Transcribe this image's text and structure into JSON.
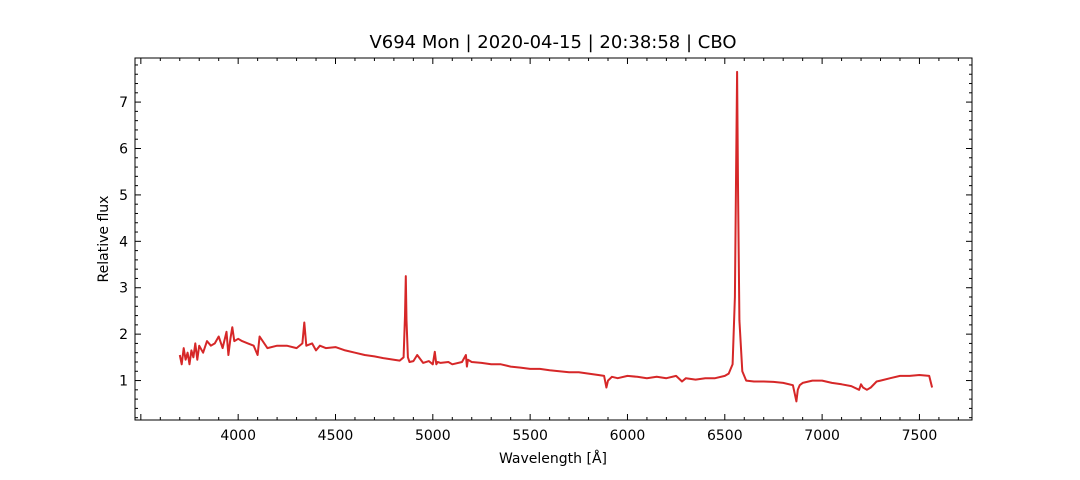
{
  "chart_data": {
    "type": "line",
    "title": "V694 Mon | 2020-04-15 | 20:38:58 | CBO",
    "xlabel": "Wavelength [Å]",
    "ylabel": "Relative flux",
    "xlim": [
      3470,
      7770
    ],
    "ylim": [
      0.15,
      7.95
    ],
    "xticks": [
      4000,
      4500,
      5000,
      5500,
      6000,
      6500,
      7000,
      7500
    ],
    "yticks": [
      1,
      2,
      3,
      4,
      5,
      6,
      7
    ],
    "grid": false,
    "ticks_direction": "in",
    "series": [
      {
        "color": "#d62728",
        "x": [
          3700,
          3710,
          3720,
          3730,
          3740,
          3750,
          3760,
          3770,
          3780,
          3790,
          3800,
          3820,
          3840,
          3860,
          3880,
          3900,
          3920,
          3940,
          3950,
          3960,
          3970,
          3980,
          4000,
          4020,
          4050,
          4080,
          4100,
          4110,
          4150,
          4200,
          4250,
          4300,
          4330,
          4340,
          4350,
          4380,
          4400,
          4420,
          4450,
          4500,
          4550,
          4600,
          4650,
          4700,
          4750,
          4800,
          4830,
          4850,
          4857,
          4861,
          4865,
          4872,
          4880,
          4900,
          4920,
          4950,
          4980,
          5000,
          5010,
          5018,
          5025,
          5040,
          5080,
          5100,
          5150,
          5170,
          5175,
          5180,
          5200,
          5250,
          5300,
          5350,
          5400,
          5450,
          5500,
          5550,
          5600,
          5650,
          5700,
          5750,
          5800,
          5850,
          5880,
          5892,
          5900,
          5920,
          5950,
          6000,
          6050,
          6100,
          6150,
          6200,
          6250,
          6280,
          6300,
          6350,
          6400,
          6450,
          6500,
          6520,
          6540,
          6552,
          6558,
          6563,
          6568,
          6575,
          6590,
          6610,
          6650,
          6700,
          6750,
          6800,
          6850,
          6868,
          6875,
          6885,
          6900,
          6950,
          7000,
          7050,
          7100,
          7150,
          7190,
          7200,
          7210,
          7230,
          7250,
          7280,
          7300,
          7350,
          7400,
          7450,
          7500,
          7550,
          7565
        ],
        "y": [
          1.55,
          1.35,
          1.7,
          1.45,
          1.6,
          1.35,
          1.65,
          1.5,
          1.8,
          1.45,
          1.75,
          1.6,
          1.85,
          1.75,
          1.8,
          1.95,
          1.7,
          2.05,
          1.55,
          1.9,
          2.15,
          1.85,
          1.9,
          1.85,
          1.8,
          1.75,
          1.55,
          1.95,
          1.7,
          1.75,
          1.75,
          1.7,
          1.8,
          2.25,
          1.75,
          1.8,
          1.65,
          1.75,
          1.7,
          1.72,
          1.65,
          1.6,
          1.55,
          1.52,
          1.48,
          1.45,
          1.43,
          1.5,
          2.4,
          3.25,
          2.3,
          1.5,
          1.4,
          1.42,
          1.55,
          1.38,
          1.42,
          1.35,
          1.62,
          1.35,
          1.4,
          1.38,
          1.4,
          1.35,
          1.4,
          1.55,
          1.3,
          1.45,
          1.4,
          1.38,
          1.35,
          1.35,
          1.3,
          1.28,
          1.25,
          1.25,
          1.22,
          1.2,
          1.18,
          1.18,
          1.15,
          1.12,
          1.1,
          0.85,
          1.0,
          1.08,
          1.05,
          1.1,
          1.08,
          1.05,
          1.08,
          1.05,
          1.1,
          0.98,
          1.05,
          1.02,
          1.05,
          1.05,
          1.1,
          1.15,
          1.35,
          2.8,
          5.5,
          7.65,
          5.2,
          2.3,
          1.2,
          1.0,
          0.98,
          0.98,
          0.97,
          0.95,
          0.9,
          0.55,
          0.8,
          0.9,
          0.95,
          1.0,
          1.0,
          0.95,
          0.92,
          0.88,
          0.8,
          0.92,
          0.85,
          0.8,
          0.85,
          0.98,
          1.0,
          1.05,
          1.1,
          1.1,
          1.12,
          1.1,
          0.85
        ]
      }
    ]
  }
}
